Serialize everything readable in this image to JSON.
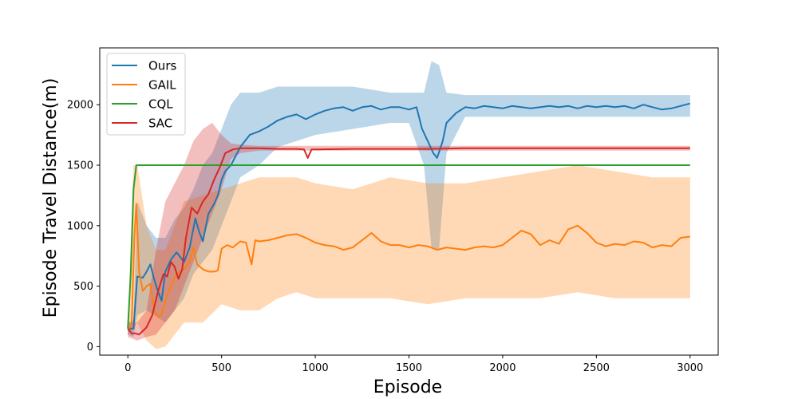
{
  "chart_data": {
    "type": "line",
    "title": "",
    "xlabel": "Episode",
    "ylabel": "Episode Travel Distance(m)",
    "xlim": [
      -150,
      3150
    ],
    "ylim": [
      -70,
      2470
    ],
    "xticks": [
      0,
      500,
      1000,
      1500,
      2000,
      2500,
      3000
    ],
    "yticks": [
      0,
      500,
      1000,
      1500,
      2000
    ],
    "grid": false,
    "legend_position": "upper-left",
    "series": [
      {
        "name": "Ours",
        "color": "#1f77b4",
        "points": [
          [
            0,
            150
          ],
          [
            30,
            150
          ],
          [
            50,
            580
          ],
          [
            80,
            570
          ],
          [
            100,
            620
          ],
          [
            120,
            680
          ],
          [
            140,
            560
          ],
          [
            160,
            460
          ],
          [
            180,
            380
          ],
          [
            200,
            620
          ],
          [
            230,
            720
          ],
          [
            260,
            780
          ],
          [
            300,
            700
          ],
          [
            330,
            820
          ],
          [
            360,
            1060
          ],
          [
            380,
            950
          ],
          [
            400,
            870
          ],
          [
            430,
            1100
          ],
          [
            460,
            1180
          ],
          [
            480,
            1250
          ],
          [
            500,
            1380
          ],
          [
            520,
            1450
          ],
          [
            550,
            1500
          ],
          [
            600,
            1650
          ],
          [
            650,
            1750
          ],
          [
            700,
            1780
          ],
          [
            750,
            1820
          ],
          [
            800,
            1870
          ],
          [
            850,
            1900
          ],
          [
            900,
            1920
          ],
          [
            950,
            1880
          ],
          [
            1000,
            1920
          ],
          [
            1050,
            1950
          ],
          [
            1100,
            1970
          ],
          [
            1150,
            1980
          ],
          [
            1200,
            1950
          ],
          [
            1250,
            1980
          ],
          [
            1300,
            1990
          ],
          [
            1350,
            1960
          ],
          [
            1400,
            1980
          ],
          [
            1450,
            1980
          ],
          [
            1500,
            1960
          ],
          [
            1540,
            1980
          ],
          [
            1570,
            1800
          ],
          [
            1600,
            1700
          ],
          [
            1630,
            1600
          ],
          [
            1650,
            1560
          ],
          [
            1680,
            1700
          ],
          [
            1700,
            1850
          ],
          [
            1750,
            1930
          ],
          [
            1800,
            1980
          ],
          [
            1850,
            1970
          ],
          [
            1900,
            1990
          ],
          [
            1950,
            1980
          ],
          [
            2000,
            1970
          ],
          [
            2050,
            1990
          ],
          [
            2100,
            1980
          ],
          [
            2150,
            1970
          ],
          [
            2200,
            1980
          ],
          [
            2250,
            1990
          ],
          [
            2300,
            1980
          ],
          [
            2350,
            1990
          ],
          [
            2400,
            1970
          ],
          [
            2450,
            1990
          ],
          [
            2500,
            1980
          ],
          [
            2550,
            1990
          ],
          [
            2600,
            1980
          ],
          [
            2650,
            1990
          ],
          [
            2700,
            1970
          ],
          [
            2750,
            2000
          ],
          [
            2800,
            1980
          ],
          [
            2850,
            1960
          ],
          [
            2900,
            1970
          ],
          [
            2950,
            1990
          ],
          [
            3000,
            2010
          ]
        ],
        "band": [
          [
            0,
            100,
            200
          ],
          [
            30,
            80,
            220
          ],
          [
            50,
            260,
            1200
          ],
          [
            100,
            300,
            1000
          ],
          [
            150,
            250,
            900
          ],
          [
            200,
            200,
            900
          ],
          [
            250,
            300,
            1050
          ],
          [
            300,
            400,
            1150
          ],
          [
            350,
            600,
            1300
          ],
          [
            400,
            700,
            1500
          ],
          [
            450,
            800,
            1600
          ],
          [
            500,
            1000,
            1800
          ],
          [
            550,
            1200,
            2000
          ],
          [
            600,
            1400,
            2100
          ],
          [
            700,
            1500,
            2100
          ],
          [
            800,
            1650,
            2150
          ],
          [
            900,
            1700,
            2150
          ],
          [
            1000,
            1750,
            2150
          ],
          [
            1200,
            1800,
            2150
          ],
          [
            1400,
            1850,
            2100
          ],
          [
            1500,
            1850,
            2100
          ],
          [
            1580,
            1500,
            2100
          ],
          [
            1620,
            820,
            2360
          ],
          [
            1660,
            800,
            2330
          ],
          [
            1700,
            1600,
            2100
          ],
          [
            1800,
            1900,
            2080
          ],
          [
            2000,
            1900,
            2080
          ],
          [
            2200,
            1900,
            2080
          ],
          [
            2400,
            1900,
            2080
          ],
          [
            2600,
            1900,
            2080
          ],
          [
            2800,
            1900,
            2080
          ],
          [
            3000,
            1900,
            2080
          ]
        ]
      },
      {
        "name": "GAIL",
        "color": "#ff7f0e",
        "points": [
          [
            0,
            140
          ],
          [
            20,
            180
          ],
          [
            35,
            900
          ],
          [
            45,
            1180
          ],
          [
            60,
            620
          ],
          [
            80,
            460
          ],
          [
            100,
            500
          ],
          [
            120,
            520
          ],
          [
            140,
            300
          ],
          [
            160,
            250
          ],
          [
            180,
            260
          ],
          [
            200,
            380
          ],
          [
            230,
            500
          ],
          [
            260,
            600
          ],
          [
            300,
            640
          ],
          [
            330,
            700
          ],
          [
            350,
            820
          ],
          [
            370,
            680
          ],
          [
            400,
            640
          ],
          [
            430,
            620
          ],
          [
            460,
            620
          ],
          [
            480,
            630
          ],
          [
            500,
            810
          ],
          [
            530,
            840
          ],
          [
            560,
            820
          ],
          [
            600,
            870
          ],
          [
            630,
            860
          ],
          [
            660,
            680
          ],
          [
            680,
            880
          ],
          [
            700,
            870
          ],
          [
            750,
            880
          ],
          [
            800,
            900
          ],
          [
            850,
            920
          ],
          [
            900,
            930
          ],
          [
            950,
            900
          ],
          [
            1000,
            860
          ],
          [
            1050,
            840
          ],
          [
            1100,
            830
          ],
          [
            1150,
            800
          ],
          [
            1200,
            820
          ],
          [
            1250,
            880
          ],
          [
            1300,
            940
          ],
          [
            1350,
            870
          ],
          [
            1400,
            840
          ],
          [
            1450,
            840
          ],
          [
            1500,
            820
          ],
          [
            1550,
            840
          ],
          [
            1600,
            830
          ],
          [
            1650,
            800
          ],
          [
            1700,
            820
          ],
          [
            1750,
            810
          ],
          [
            1800,
            800
          ],
          [
            1850,
            820
          ],
          [
            1900,
            830
          ],
          [
            1950,
            820
          ],
          [
            2000,
            840
          ],
          [
            2050,
            900
          ],
          [
            2100,
            960
          ],
          [
            2150,
            930
          ],
          [
            2200,
            840
          ],
          [
            2250,
            880
          ],
          [
            2300,
            850
          ],
          [
            2350,
            970
          ],
          [
            2400,
            1000
          ],
          [
            2450,
            940
          ],
          [
            2500,
            860
          ],
          [
            2550,
            830
          ],
          [
            2600,
            850
          ],
          [
            2650,
            840
          ],
          [
            2700,
            870
          ],
          [
            2750,
            860
          ],
          [
            2800,
            820
          ],
          [
            2850,
            840
          ],
          [
            2900,
            830
          ],
          [
            2950,
            900
          ],
          [
            3000,
            910
          ]
        ],
        "band": [
          [
            0,
            100,
            200
          ],
          [
            30,
            150,
            1500
          ],
          [
            50,
            200,
            1500
          ],
          [
            100,
            50,
            1000
          ],
          [
            150,
            -20,
            800
          ],
          [
            200,
            0,
            800
          ],
          [
            300,
            200,
            1200
          ],
          [
            400,
            200,
            1250
          ],
          [
            500,
            350,
            1300
          ],
          [
            600,
            300,
            1350
          ],
          [
            700,
            300,
            1400
          ],
          [
            800,
            400,
            1400
          ],
          [
            900,
            450,
            1400
          ],
          [
            1000,
            400,
            1350
          ],
          [
            1200,
            400,
            1300
          ],
          [
            1400,
            400,
            1400
          ],
          [
            1600,
            350,
            1350
          ],
          [
            1800,
            400,
            1350
          ],
          [
            2000,
            400,
            1400
          ],
          [
            2200,
            400,
            1450
          ],
          [
            2400,
            450,
            1500
          ],
          [
            2600,
            400,
            1450
          ],
          [
            2800,
            400,
            1400
          ],
          [
            3000,
            400,
            1400
          ]
        ]
      },
      {
        "name": "CQL",
        "color": "#2ca02c",
        "points": [
          [
            0,
            150
          ],
          [
            15,
            600
          ],
          [
            30,
            1300
          ],
          [
            45,
            1500
          ],
          [
            100,
            1500
          ],
          [
            500,
            1500
          ],
          [
            1000,
            1500
          ],
          [
            1500,
            1500
          ],
          [
            2000,
            1500
          ],
          [
            2500,
            1500
          ],
          [
            3000,
            1500
          ]
        ],
        "band": []
      },
      {
        "name": "SAC",
        "color": "#d62728",
        "points": [
          [
            0,
            150
          ],
          [
            20,
            110
          ],
          [
            40,
            110
          ],
          [
            60,
            100
          ],
          [
            80,
            130
          ],
          [
            100,
            160
          ],
          [
            130,
            260
          ],
          [
            160,
            450
          ],
          [
            190,
            600
          ],
          [
            210,
            580
          ],
          [
            230,
            700
          ],
          [
            250,
            660
          ],
          [
            270,
            560
          ],
          [
            290,
            640
          ],
          [
            310,
            900
          ],
          [
            340,
            1150
          ],
          [
            370,
            1100
          ],
          [
            400,
            1200
          ],
          [
            430,
            1260
          ],
          [
            460,
            1380
          ],
          [
            490,
            1480
          ],
          [
            520,
            1600
          ],
          [
            560,
            1630
          ],
          [
            600,
            1640
          ],
          [
            700,
            1640
          ],
          [
            800,
            1635
          ],
          [
            900,
            1635
          ],
          [
            940,
            1630
          ],
          [
            960,
            1560
          ],
          [
            980,
            1630
          ],
          [
            1000,
            1630
          ],
          [
            1200,
            1635
          ],
          [
            1400,
            1635
          ],
          [
            1600,
            1635
          ],
          [
            1800,
            1640
          ],
          [
            2000,
            1640
          ],
          [
            2200,
            1640
          ],
          [
            2400,
            1640
          ],
          [
            2600,
            1640
          ],
          [
            2800,
            1640
          ],
          [
            3000,
            1640
          ]
        ],
        "band": [
          [
            0,
            80,
            200
          ],
          [
            50,
            50,
            200
          ],
          [
            100,
            80,
            300
          ],
          [
            150,
            100,
            800
          ],
          [
            200,
            200,
            1200
          ],
          [
            250,
            300,
            1350
          ],
          [
            300,
            500,
            1500
          ],
          [
            350,
            700,
            1700
          ],
          [
            400,
            900,
            1800
          ],
          [
            450,
            1100,
            1850
          ],
          [
            500,
            1300,
            1750
          ],
          [
            550,
            1550,
            1680
          ],
          [
            600,
            1600,
            1670
          ],
          [
            700,
            1620,
            1660
          ],
          [
            3000,
            1620,
            1660
          ]
        ]
      }
    ]
  }
}
